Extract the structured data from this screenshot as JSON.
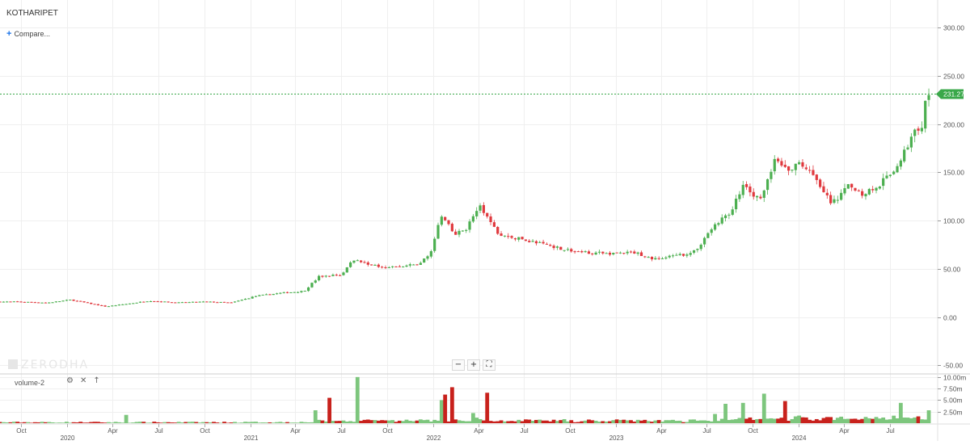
{
  "symbol": "KOTHARIPET",
  "compare_label": "Compare...",
  "compare_icon": "plus-icon",
  "watermark": "ZERODHA",
  "zoom_controls": [
    {
      "name": "zoom-out-button",
      "label": "−"
    },
    {
      "name": "zoom-in-button",
      "label": "+"
    },
    {
      "name": "fullscreen-button",
      "label": "⛶"
    }
  ],
  "volume_panel": {
    "label": "volume-2",
    "tool_icons": [
      "gear-icon",
      "close-icon",
      "arrow-up-icon"
    ]
  },
  "colors": {
    "up": "#4caf50",
    "down": "#e0393e",
    "vol_up": "#7dc67d",
    "vol_down": "#c8211c",
    "grid": "#efefef",
    "price_tag": "#3aa84a"
  },
  "chart_data": {
    "type": "candlestick",
    "y_ticks": [
      "300.00",
      "250.00",
      "200.00",
      "150.00",
      "100.00",
      "50.00",
      "0.00",
      "-50.00"
    ],
    "y_tick_values": [
      300,
      250,
      200,
      150,
      100,
      50,
      0,
      -50
    ],
    "ylim": [
      -58,
      322
    ],
    "last_price": 231.27,
    "last_price_label": "231.27",
    "x_ticks": [
      "Oct",
      "2020",
      "Apr",
      "Jul",
      "Oct",
      "2021",
      "Apr",
      "Jul",
      "Oct",
      "2022",
      "Apr",
      "Jul",
      "Oct",
      "2023",
      "Apr",
      "Jul",
      "Oct",
      "2024",
      "Apr",
      "Jul"
    ],
    "x_tick_dates": [
      "2019-10-01",
      "2020-01-01",
      "2020-04-01",
      "2020-07-01",
      "2020-10-01",
      "2021-01-01",
      "2021-04-01",
      "2021-07-01",
      "2021-10-01",
      "2022-01-01",
      "2022-04-01",
      "2022-07-01",
      "2022-10-01",
      "2023-01-01",
      "2023-04-01",
      "2023-07-01",
      "2023-10-01",
      "2024-01-01",
      "2024-04-01",
      "2024-07-01"
    ],
    "x_range": [
      "2019-08-20",
      "2024-09-25"
    ],
    "price_anchors": [
      [
        "2019-08-20",
        16
      ],
      [
        "2019-10-01",
        16
      ],
      [
        "2019-12-01",
        15
      ],
      [
        "2020-01-15",
        18
      ],
      [
        "2020-03-25",
        11
      ],
      [
        "2020-05-10",
        14
      ],
      [
        "2020-06-20",
        17
      ],
      [
        "2020-08-15",
        15
      ],
      [
        "2020-10-10",
        16
      ],
      [
        "2020-12-01",
        15
      ],
      [
        "2021-01-20",
        22
      ],
      [
        "2021-03-10",
        25
      ],
      [
        "2021-04-25",
        27
      ],
      [
        "2021-05-25",
        42
      ],
      [
        "2021-07-10",
        44
      ],
      [
        "2021-08-01",
        60
      ],
      [
        "2021-09-15",
        53
      ],
      [
        "2021-11-01",
        52
      ],
      [
        "2021-12-10",
        55
      ],
      [
        "2022-01-01",
        65
      ],
      [
        "2022-01-25",
        105
      ],
      [
        "2022-02-20",
        85
      ],
      [
        "2022-03-15",
        92
      ],
      [
        "2022-04-10",
        115
      ],
      [
        "2022-05-20",
        85
      ],
      [
        "2022-07-10",
        80
      ],
      [
        "2022-09-01",
        74
      ],
      [
        "2022-10-15",
        68
      ],
      [
        "2022-12-15",
        66
      ],
      [
        "2023-02-15",
        67
      ],
      [
        "2023-03-25",
        60
      ],
      [
        "2023-05-15",
        64
      ],
      [
        "2023-06-15",
        68
      ],
      [
        "2023-07-15",
        90
      ],
      [
        "2023-08-25",
        110
      ],
      [
        "2023-09-20",
        135
      ],
      [
        "2023-10-25",
        122
      ],
      [
        "2023-11-20",
        162
      ],
      [
        "2023-12-20",
        150
      ],
      [
        "2024-01-10",
        162
      ],
      [
        "2024-02-15",
        140
      ],
      [
        "2024-03-15",
        118
      ],
      [
        "2024-04-15",
        135
      ],
      [
        "2024-05-15",
        128
      ],
      [
        "2024-06-10",
        135
      ],
      [
        "2024-07-15",
        150
      ],
      [
        "2024-08-20",
        185
      ],
      [
        "2024-09-10",
        200
      ],
      [
        "2024-09-20",
        231.27
      ]
    ],
    "volume_axis": {
      "ticks": [
        "10.00m",
        "7.50m",
        "5.00m",
        "2.50m"
      ],
      "tick_values": [
        10,
        7.5,
        5,
        2.5
      ],
      "ymax": 10.5
    },
    "volume_spikes": [
      [
        "2020-05-01",
        1.8
      ],
      [
        "2021-06-10",
        5.5
      ],
      [
        "2021-08-01",
        10.0
      ],
      [
        "2021-05-10",
        2.8
      ],
      [
        "2022-01-25",
        6.2
      ],
      [
        "2022-02-05",
        7.8
      ],
      [
        "2022-01-15",
        5.0
      ],
      [
        "2022-04-20",
        6.6
      ],
      [
        "2022-03-20",
        2.2
      ],
      [
        "2023-07-15",
        2.0
      ],
      [
        "2023-08-05",
        4.2
      ],
      [
        "2023-09-10",
        4.4
      ],
      [
        "2023-10-25",
        6.4
      ],
      [
        "2023-12-05",
        4.8
      ],
      [
        "2024-07-25",
        4.4
      ],
      [
        "2024-09-15",
        2.8
      ]
    ]
  }
}
